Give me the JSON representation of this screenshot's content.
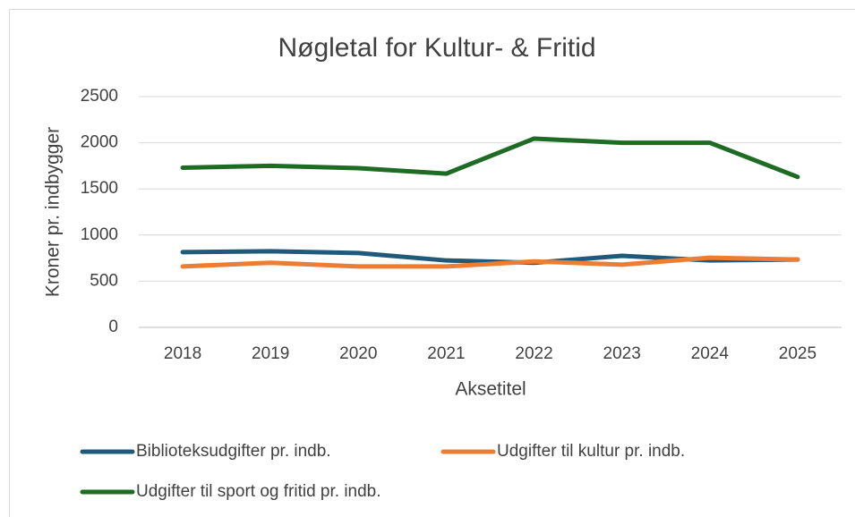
{
  "chart_data": {
    "type": "line",
    "title": "Nøgletal for Kultur- & Fritid",
    "x_label": "Aksetitel",
    "y_label": "Kroner pr. indbygger",
    "categories": [
      "2018",
      "2019",
      "2020",
      "2021",
      "2022",
      "2023",
      "2024",
      "2025"
    ],
    "series": [
      {
        "name": "Biblioteksudgifter pr. indb.",
        "color": "#1f5a7a",
        "values": [
          815,
          825,
          805,
          725,
          700,
          775,
          725,
          735
        ]
      },
      {
        "name": "Udgifter til kultur pr. indb.",
        "color": "#ed7d31",
        "values": [
          660,
          700,
          660,
          660,
          715,
          680,
          755,
          735
        ]
      },
      {
        "name": "Udgifter til sport og fritid pr. indb.",
        "color": "#1e6b24",
        "values": [
          1730,
          1750,
          1725,
          1665,
          2045,
          2000,
          2000,
          1630
        ]
      }
    ],
    "ylim": [
      0,
      2500
    ],
    "yticks": [
      0,
      500,
      1000,
      1500,
      2000,
      2500
    ],
    "grid": true
  }
}
